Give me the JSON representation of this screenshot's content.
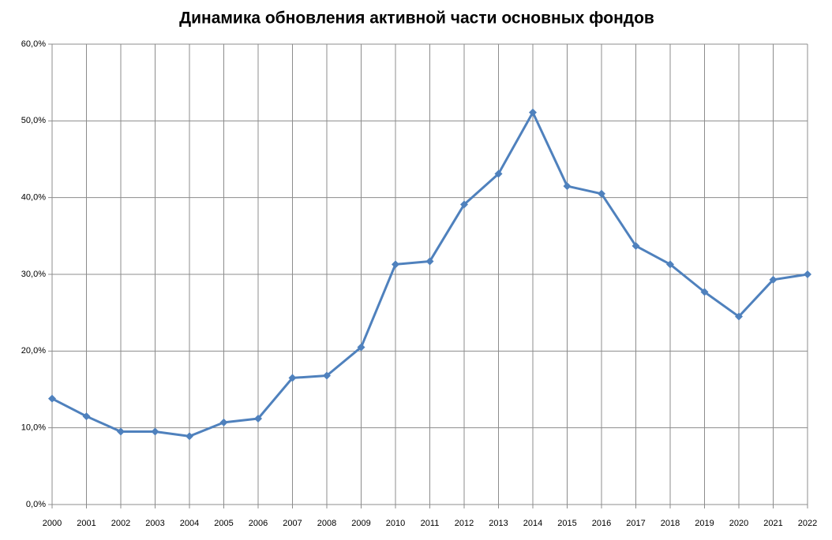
{
  "chart_data": {
    "type": "line",
    "title": "Динамика обновления активной части основных фондов",
    "categories": [
      "2000",
      "2001",
      "2002",
      "2003",
      "2004",
      "2005",
      "2006",
      "2007",
      "2008",
      "2009",
      "2010",
      "2011",
      "2012",
      "2013",
      "2014",
      "2015",
      "2016",
      "2017",
      "2018",
      "2019",
      "2020",
      "2021",
      "2022"
    ],
    "values": [
      13.8,
      11.5,
      9.5,
      9.5,
      8.9,
      10.7,
      11.2,
      16.5,
      16.8,
      20.5,
      31.3,
      31.7,
      39.1,
      43.1,
      51.1,
      41.5,
      40.5,
      33.7,
      31.3,
      27.7,
      24.5,
      29.3,
      30.0
    ],
    "color": "#4f81bd",
    "ylim": [
      0,
      60
    ],
    "yticks": [
      {
        "value": 0,
        "label": "0,0%"
      },
      {
        "value": 10,
        "label": "10,0%"
      },
      {
        "value": 20,
        "label": "20,0%"
      },
      {
        "value": 30,
        "label": "30,0%"
      },
      {
        "value": 40,
        "label": "40,0%"
      },
      {
        "value": 50,
        "label": "50,0%"
      },
      {
        "value": 60,
        "label": "60,0%"
      }
    ],
    "grid": true
  }
}
